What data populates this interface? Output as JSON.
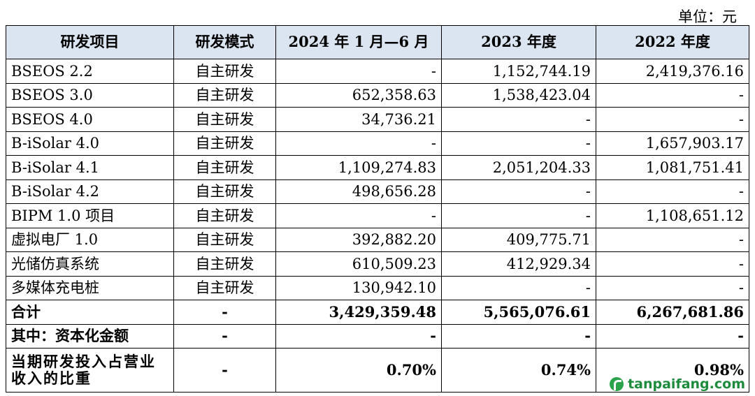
{
  "unit_label": "单位：元",
  "columns": [
    "研发项目",
    "研发模式",
    "2024 年 1 月—6 月",
    "2023 年度",
    "2022 年度"
  ],
  "rows": [
    [
      "BSEOS 2.2",
      "自主研发",
      "-",
      "1,152,744.19",
      "2,419,376.16"
    ],
    [
      "BSEOS 3.0",
      "自主研发",
      "652,358.63",
      "1,538,423.04",
      "-"
    ],
    [
      "BSEOS 4.0",
      "自主研发",
      "34,736.21",
      "-",
      "-"
    ],
    [
      "B-iSolar 4.0",
      "自主研发",
      "-",
      "-",
      "1,657,903.17"
    ],
    [
      "B-iSolar 4.1",
      "自主研发",
      "1,109,274.83",
      "2,051,204.33",
      "1,081,751.41"
    ],
    [
      "B-iSolar 4.2",
      "自主研发",
      "498,656.28",
      "-",
      "-"
    ],
    [
      "BIPM 1.0 项目",
      "自主研发",
      "-",
      "-",
      "1,108,651.12"
    ],
    [
      "虚拟电厂 1.0",
      "自主研发",
      "392,882.20",
      "409,775.71",
      "-"
    ],
    [
      "光储仿真系统",
      "自主研发",
      "610,509.23",
      "412,929.34",
      "-"
    ],
    [
      "多媒体充电桩",
      "自主研发",
      "130,942.10",
      "-",
      "-"
    ]
  ],
  "total": [
    "合计",
    "-",
    "3,429,359.48",
    "5,565,076.61",
    "6,267,681.86"
  ],
  "capitalized": [
    "其中：资本化金额",
    "-",
    "-",
    "-",
    "-"
  ],
  "ratio": [
    "当期研发投入占营业收入的比重",
    "-",
    "0.70%",
    "0.74%",
    "0.98%"
  ],
  "watermark": "tanpaifang.com"
}
